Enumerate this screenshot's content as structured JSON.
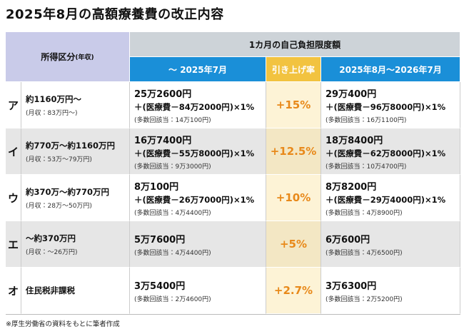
{
  "title": "2025年8月の高額療養費の改正内容",
  "header": {
    "income": "所得区分",
    "income_note": "(年収)",
    "span": "1カ月の自己負担限度額",
    "before": "～ 2025年7月",
    "rate": "引き上げ率",
    "after": "2025年8月～2026年7月"
  },
  "rows": [
    {
      "letter": "ア",
      "income": "約1160万円～",
      "income_note": "(月収：83万円～)",
      "before": {
        "base": "25万2600円",
        "formula": "＋(医療費－84万2000円)×1%",
        "multi": "(多数回該当：14万100円)"
      },
      "rate": "+15%",
      "after": {
        "base": "29万400円",
        "formula": "＋(医療費－96万8000円)×1%",
        "multi": "(多数回該当：16万1100円)"
      }
    },
    {
      "letter": "イ",
      "income": "約770万～約1160万円",
      "income_note": "(月収：53万～79万円)",
      "before": {
        "base": "16万7400円",
        "formula": "＋(医療費－55万8000円)×1%",
        "multi": "(多数回該当：9万3000円)"
      },
      "rate": "+12.5%",
      "after": {
        "base": "18万8400円",
        "formula": "＋(医療費－62万8000円)×1%",
        "multi": "(多数回該当：10万4700円)"
      }
    },
    {
      "letter": "ウ",
      "income": "約370万～約770万円",
      "income_note": "(月収：28万～50万円)",
      "before": {
        "base": "8万100円",
        "formula": "＋(医療費－26万7000円)×1%",
        "multi": "(多数回該当：4万4400円)"
      },
      "rate": "+10%",
      "after": {
        "base": "8万8200円",
        "formula": "＋(医療費－29万4000円)×1%",
        "multi": "(多数回該当：4万8900円)"
      }
    },
    {
      "letter": "エ",
      "income": "～約370万円",
      "income_note": "(月収：～26万円)",
      "before": {
        "base": "5万7600円",
        "multi": "(多数回該当：4万4400円)"
      },
      "rate": "+5%",
      "after": {
        "base": "6万600円",
        "multi": "(多数回該当：4万6500円)"
      }
    },
    {
      "letter": "オ",
      "income": "住民税非課税",
      "before": {
        "base": "3万5400円",
        "multi": "(多数回該当：2万4600円)"
      },
      "rate": "+2.7%",
      "after": {
        "base": "3万6300円",
        "multi": "(多数回該当：2万5200円)"
      }
    }
  ],
  "footnote": "※厚生労働省の資料をもとに筆者作成"
}
